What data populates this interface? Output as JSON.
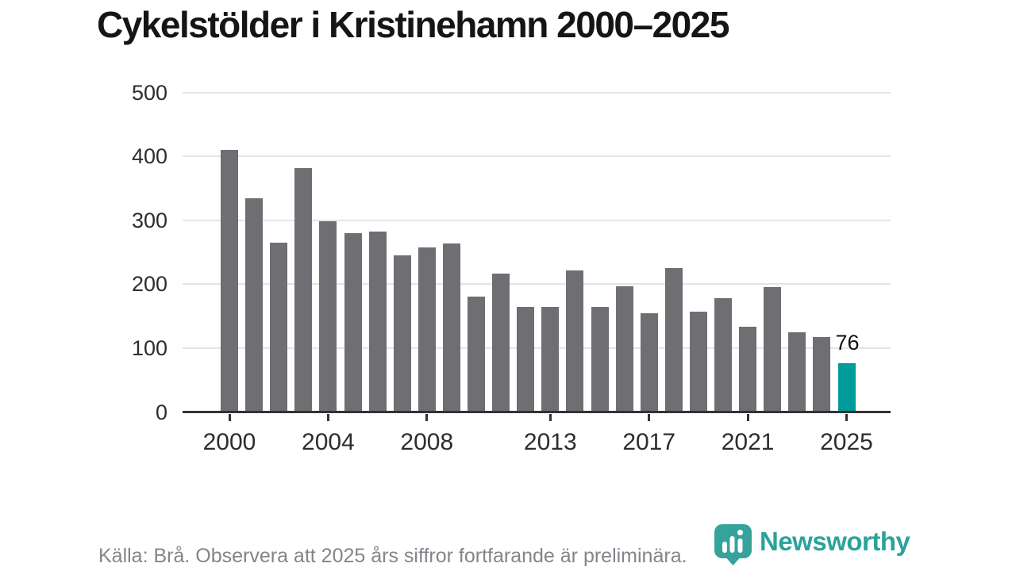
{
  "title": "Cykelstölder i Kristinehamn 2000–2025",
  "chart_data": {
    "type": "bar",
    "title": "Cykelstölder i Kristinehamn 2000–2025",
    "categories": [
      2000,
      2001,
      2002,
      2003,
      2004,
      2005,
      2006,
      2007,
      2008,
      2009,
      2010,
      2011,
      2012,
      2013,
      2014,
      2015,
      2016,
      2017,
      2018,
      2019,
      2020,
      2021,
      2022,
      2023,
      2024,
      2025
    ],
    "values": [
      410,
      335,
      265,
      381,
      298,
      280,
      282,
      245,
      258,
      264,
      181,
      217,
      165,
      165,
      221,
      165,
      197,
      155,
      225,
      157,
      178,
      134,
      195,
      125,
      117,
      76
    ],
    "xlabel": "",
    "ylabel": "",
    "ylim": [
      0,
      500
    ],
    "yticks": [
      0,
      100,
      200,
      300,
      400,
      500
    ],
    "xticks": [
      2000,
      2004,
      2008,
      2013,
      2017,
      2021,
      2025
    ],
    "grid": true,
    "legend": "none",
    "bar_color": "#6e6e73",
    "highlight_category": 2025,
    "highlight_color": "#009b9b",
    "annotation": {
      "category": 2025,
      "label": "76"
    }
  },
  "footer": {
    "source_note": "Källa: Brå. Observera att 2025 års siffror fortfarande är preliminära."
  },
  "logo": {
    "wordmark": "Newsworthy",
    "icon": "newsworthy-pin-barchart-icon",
    "color": "#2ba29c"
  }
}
